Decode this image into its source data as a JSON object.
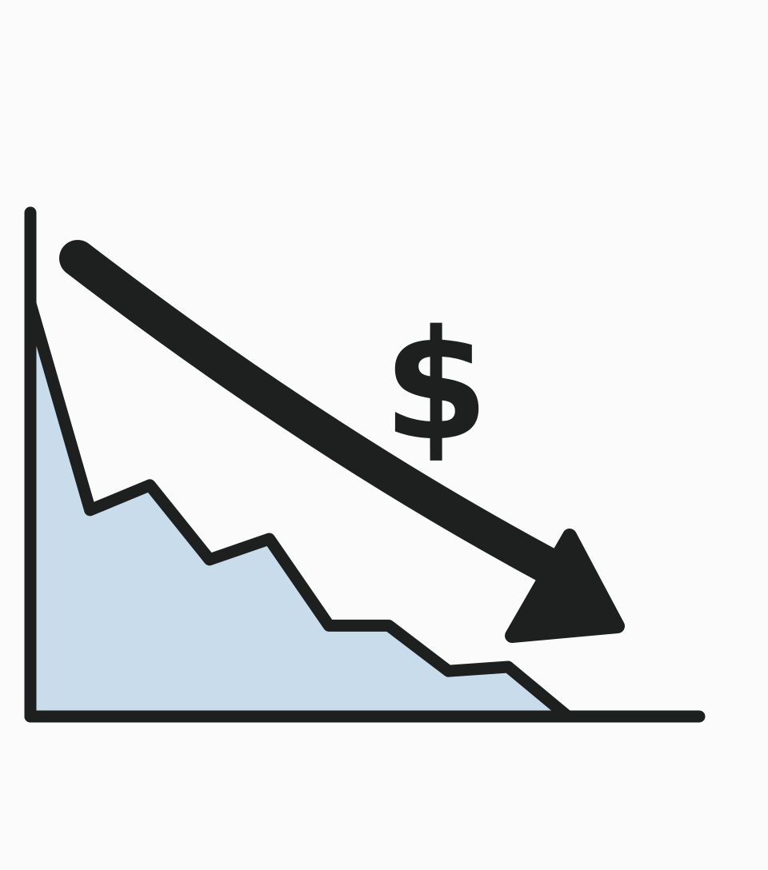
{
  "chart_data": {
    "type": "area",
    "title": "",
    "xlabel": "",
    "ylabel": "",
    "x": [
      0,
      1,
      2,
      3,
      4,
      5,
      6,
      7,
      8,
      9,
      10
    ],
    "series": [
      {
        "values": [
          100,
          50,
          56,
          38,
          43,
          22,
          22,
          11,
          12,
          0,
          0
        ]
      }
    ],
    "xlim": [
      0,
      11.2
    ],
    "ylim": [
      0,
      122
    ],
    "grid": false,
    "legend": "none",
    "annotation_symbol": "$",
    "trend": "down",
    "colors": {
      "area_fill": "#c9dcec",
      "line": "#1e2020",
      "axis": "#1e2020",
      "arrow": "#1e2020",
      "background": "#fbfbfb"
    },
    "icons": [
      "downward-trend-arrow-icon",
      "dollar-sign-icon"
    ]
  }
}
